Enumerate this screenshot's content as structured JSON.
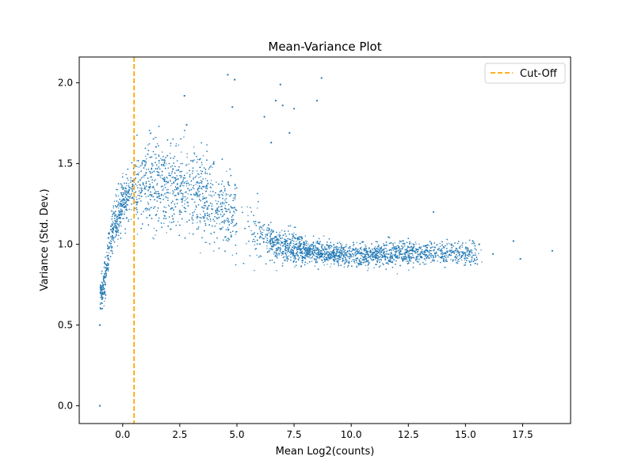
{
  "chart_data": {
    "type": "scatter",
    "title": "Mean-Variance Plot",
    "xlabel": "Mean Log2(counts)",
    "ylabel": "Variance (Std. Dev.)",
    "xlim": [
      -1.9,
      19.6
    ],
    "ylim": [
      -0.11,
      2.16
    ],
    "x_ticks": [
      0.0,
      2.5,
      5.0,
      7.5,
      10.0,
      12.5,
      15.0,
      17.5
    ],
    "x_tick_labels": [
      "0.0",
      "2.5",
      "5.0",
      "7.5",
      "10.0",
      "12.5",
      "15.0",
      "17.5"
    ],
    "y_ticks": [
      0.0,
      0.5,
      1.0,
      1.5,
      2.0
    ],
    "y_tick_labels": [
      "0.0",
      "0.5",
      "1.0",
      "1.5",
      "2.0"
    ],
    "grid": false,
    "legend_position": "upper right",
    "point_color": "#1f77b4",
    "cutoff": {
      "name": "Cut-Off",
      "x": 0.5,
      "color": "#ffa500",
      "style": "dashed"
    },
    "series": [
      {
        "color": "#1f77b4",
        "notable_points": [
          [
            -1.0,
            0.0
          ],
          [
            -1.0,
            0.5
          ],
          [
            -0.95,
            0.6
          ],
          [
            -0.9,
            0.66
          ],
          [
            -0.88,
            0.7
          ],
          [
            4.6,
            2.05
          ],
          [
            4.9,
            2.02
          ],
          [
            6.9,
            1.99
          ],
          [
            8.7,
            2.03
          ],
          [
            2.7,
            1.92
          ],
          [
            4.8,
            1.85
          ],
          [
            6.7,
            1.89
          ],
          [
            7.0,
            1.86
          ],
          [
            7.5,
            1.84
          ],
          [
            8.5,
            1.89
          ],
          [
            6.2,
            1.79
          ],
          [
            7.3,
            1.69
          ],
          [
            2.8,
            1.74
          ],
          [
            6.5,
            1.63
          ],
          [
            13.6,
            1.2
          ],
          [
            16.2,
            0.94
          ],
          [
            17.1,
            1.02
          ],
          [
            17.4,
            0.91
          ],
          [
            18.8,
            0.96
          ],
          [
            15.6,
            1.0
          ]
        ],
        "density_trend": [
          [
            -0.9,
            0.75
          ],
          [
            -0.5,
            1.05
          ],
          [
            0.0,
            1.25
          ],
          [
            0.5,
            1.35
          ],
          [
            1.5,
            1.38
          ],
          [
            2.5,
            1.36
          ],
          [
            3.5,
            1.3
          ],
          [
            4.5,
            1.2
          ],
          [
            5.5,
            1.08
          ],
          [
            6.5,
            1.01
          ],
          [
            7.5,
            0.97
          ],
          [
            8.5,
            0.95
          ],
          [
            9.5,
            0.94
          ],
          [
            10.5,
            0.93
          ],
          [
            11.5,
            0.94
          ],
          [
            12.5,
            0.95
          ],
          [
            13.5,
            0.95
          ],
          [
            14.5,
            0.95
          ],
          [
            15.5,
            0.94
          ]
        ]
      }
    ]
  }
}
